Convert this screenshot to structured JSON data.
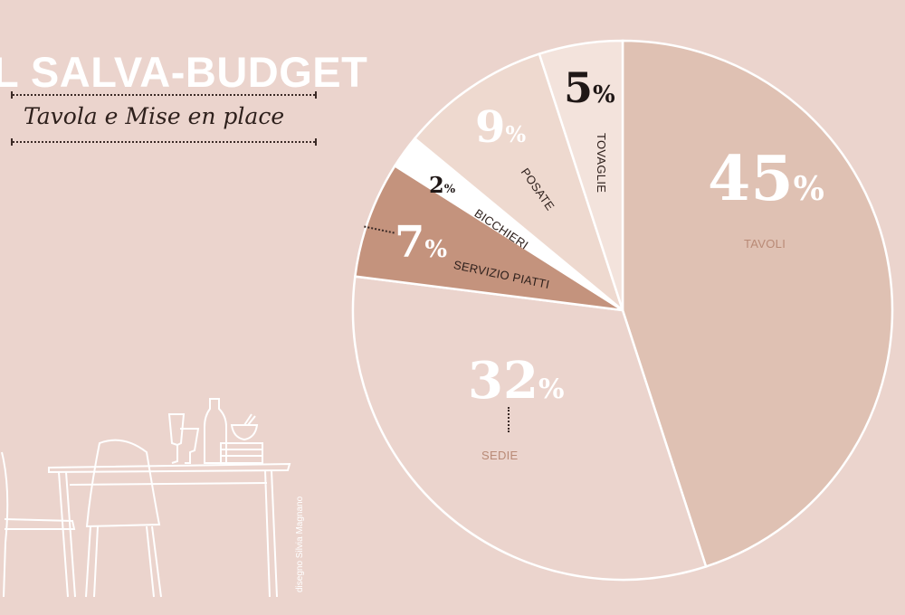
{
  "header": {
    "title": "L SALVA-BUDGET",
    "subtitle": "Tavola e Mise en place"
  },
  "credit": "disegno Silvia Magnano",
  "chart_data": {
    "type": "pie",
    "start": "top",
    "direction": "clockwise",
    "slices": [
      {
        "label": "TAVOLI",
        "value": 45,
        "display": "45",
        "color": "#dfc1b3"
      },
      {
        "label": "SEDIE",
        "value": 32,
        "display": "32",
        "color": "#ebd4cd"
      },
      {
        "label": "SERVIZIO PIATTI",
        "value": 7,
        "display": "7",
        "color": "#c4937d"
      },
      {
        "label": "BICCHIERI",
        "value": 2,
        "display": "2",
        "color": "#ffffff"
      },
      {
        "label": "POSATE",
        "value": 9,
        "display": "9",
        "color": "#eed9cf"
      },
      {
        "label": "TOVAGLIE",
        "value": 5,
        "display": "5",
        "color": "#f3e3dc"
      }
    ],
    "percent_sign": "%",
    "accent_label_color": "#b98a76"
  }
}
